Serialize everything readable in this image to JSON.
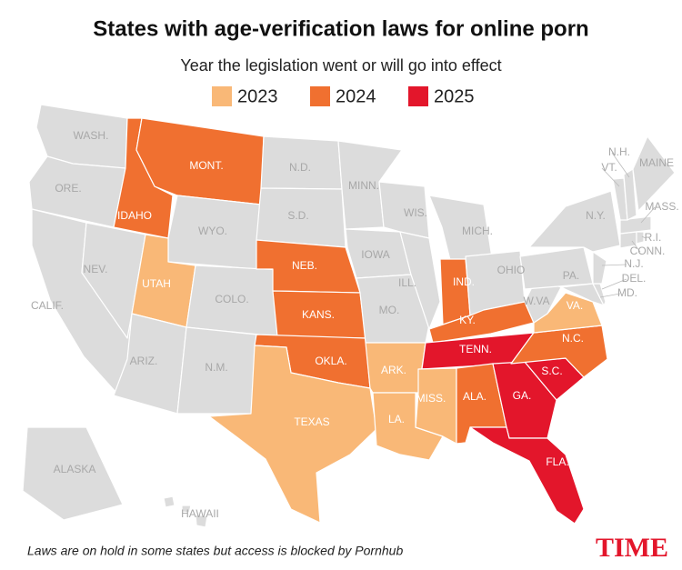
{
  "title": "States with age-verification laws for online porn",
  "subtitle": "Year the legislation went or will go into effect",
  "legend": [
    {
      "label": "2023",
      "color": "#f9b877"
    },
    {
      "label": "2024",
      "color": "#f07030"
    },
    {
      "label": "2025",
      "color": "#e3162b"
    }
  ],
  "no_law_color": "#dcdcdc",
  "states": [
    {
      "label": "WASH.",
      "year": null
    },
    {
      "label": "ORE.",
      "year": null
    },
    {
      "label": "CALIF.",
      "year": null
    },
    {
      "label": "NEV.",
      "year": null
    },
    {
      "label": "IDAHO",
      "year": "2024"
    },
    {
      "label": "MONT.",
      "year": "2024"
    },
    {
      "label": "WYO.",
      "year": null
    },
    {
      "label": "UTAH",
      "year": "2023"
    },
    {
      "label": "COLO.",
      "year": null
    },
    {
      "label": "ARIZ.",
      "year": null
    },
    {
      "label": "N.M.",
      "year": null
    },
    {
      "label": "N.D.",
      "year": null
    },
    {
      "label": "S.D.",
      "year": null
    },
    {
      "label": "NEB.",
      "year": "2024"
    },
    {
      "label": "KANS.",
      "year": "2024"
    },
    {
      "label": "OKLA.",
      "year": "2024"
    },
    {
      "label": "TEXAS",
      "year": "2023"
    },
    {
      "label": "MINN.",
      "year": null
    },
    {
      "label": "IOWA",
      "year": null
    },
    {
      "label": "MO.",
      "year": null
    },
    {
      "label": "ARK.",
      "year": "2023"
    },
    {
      "label": "LA.",
      "year": "2023"
    },
    {
      "label": "WIS.",
      "year": null
    },
    {
      "label": "ILL.",
      "year": null
    },
    {
      "label": "MICH.",
      "year": null
    },
    {
      "label": "IND.",
      "year": "2024"
    },
    {
      "label": "OHIO",
      "year": null
    },
    {
      "label": "KY.",
      "year": "2024"
    },
    {
      "label": "TENN.",
      "year": "2025"
    },
    {
      "label": "MISS.",
      "year": "2023"
    },
    {
      "label": "ALA.",
      "year": "2024"
    },
    {
      "label": "GA.",
      "year": "2025"
    },
    {
      "label": "FLA.",
      "year": "2025"
    },
    {
      "label": "S.C.",
      "year": "2025"
    },
    {
      "label": "N.C.",
      "year": "2024"
    },
    {
      "label": "VA.",
      "year": "2023"
    },
    {
      "label": "W.VA",
      "year": null
    },
    {
      "label": "PA.",
      "year": null
    },
    {
      "label": "N.Y.",
      "year": null
    },
    {
      "label": "MD.",
      "year": null
    },
    {
      "label": "DEL.",
      "year": null
    },
    {
      "label": "N.J.",
      "year": null
    },
    {
      "label": "CONN.",
      "year": null
    },
    {
      "label": "R.I.",
      "year": null
    },
    {
      "label": "MASS.",
      "year": null
    },
    {
      "label": "VT.",
      "year": null
    },
    {
      "label": "N.H.",
      "year": null
    },
    {
      "label": "MAINE",
      "year": null
    },
    {
      "label": "ALASKA",
      "year": null
    },
    {
      "label": "HAWAII",
      "year": null
    }
  ],
  "note": "Laws are on hold in some states but access is blocked by Pornhub",
  "brand": "TIME"
}
